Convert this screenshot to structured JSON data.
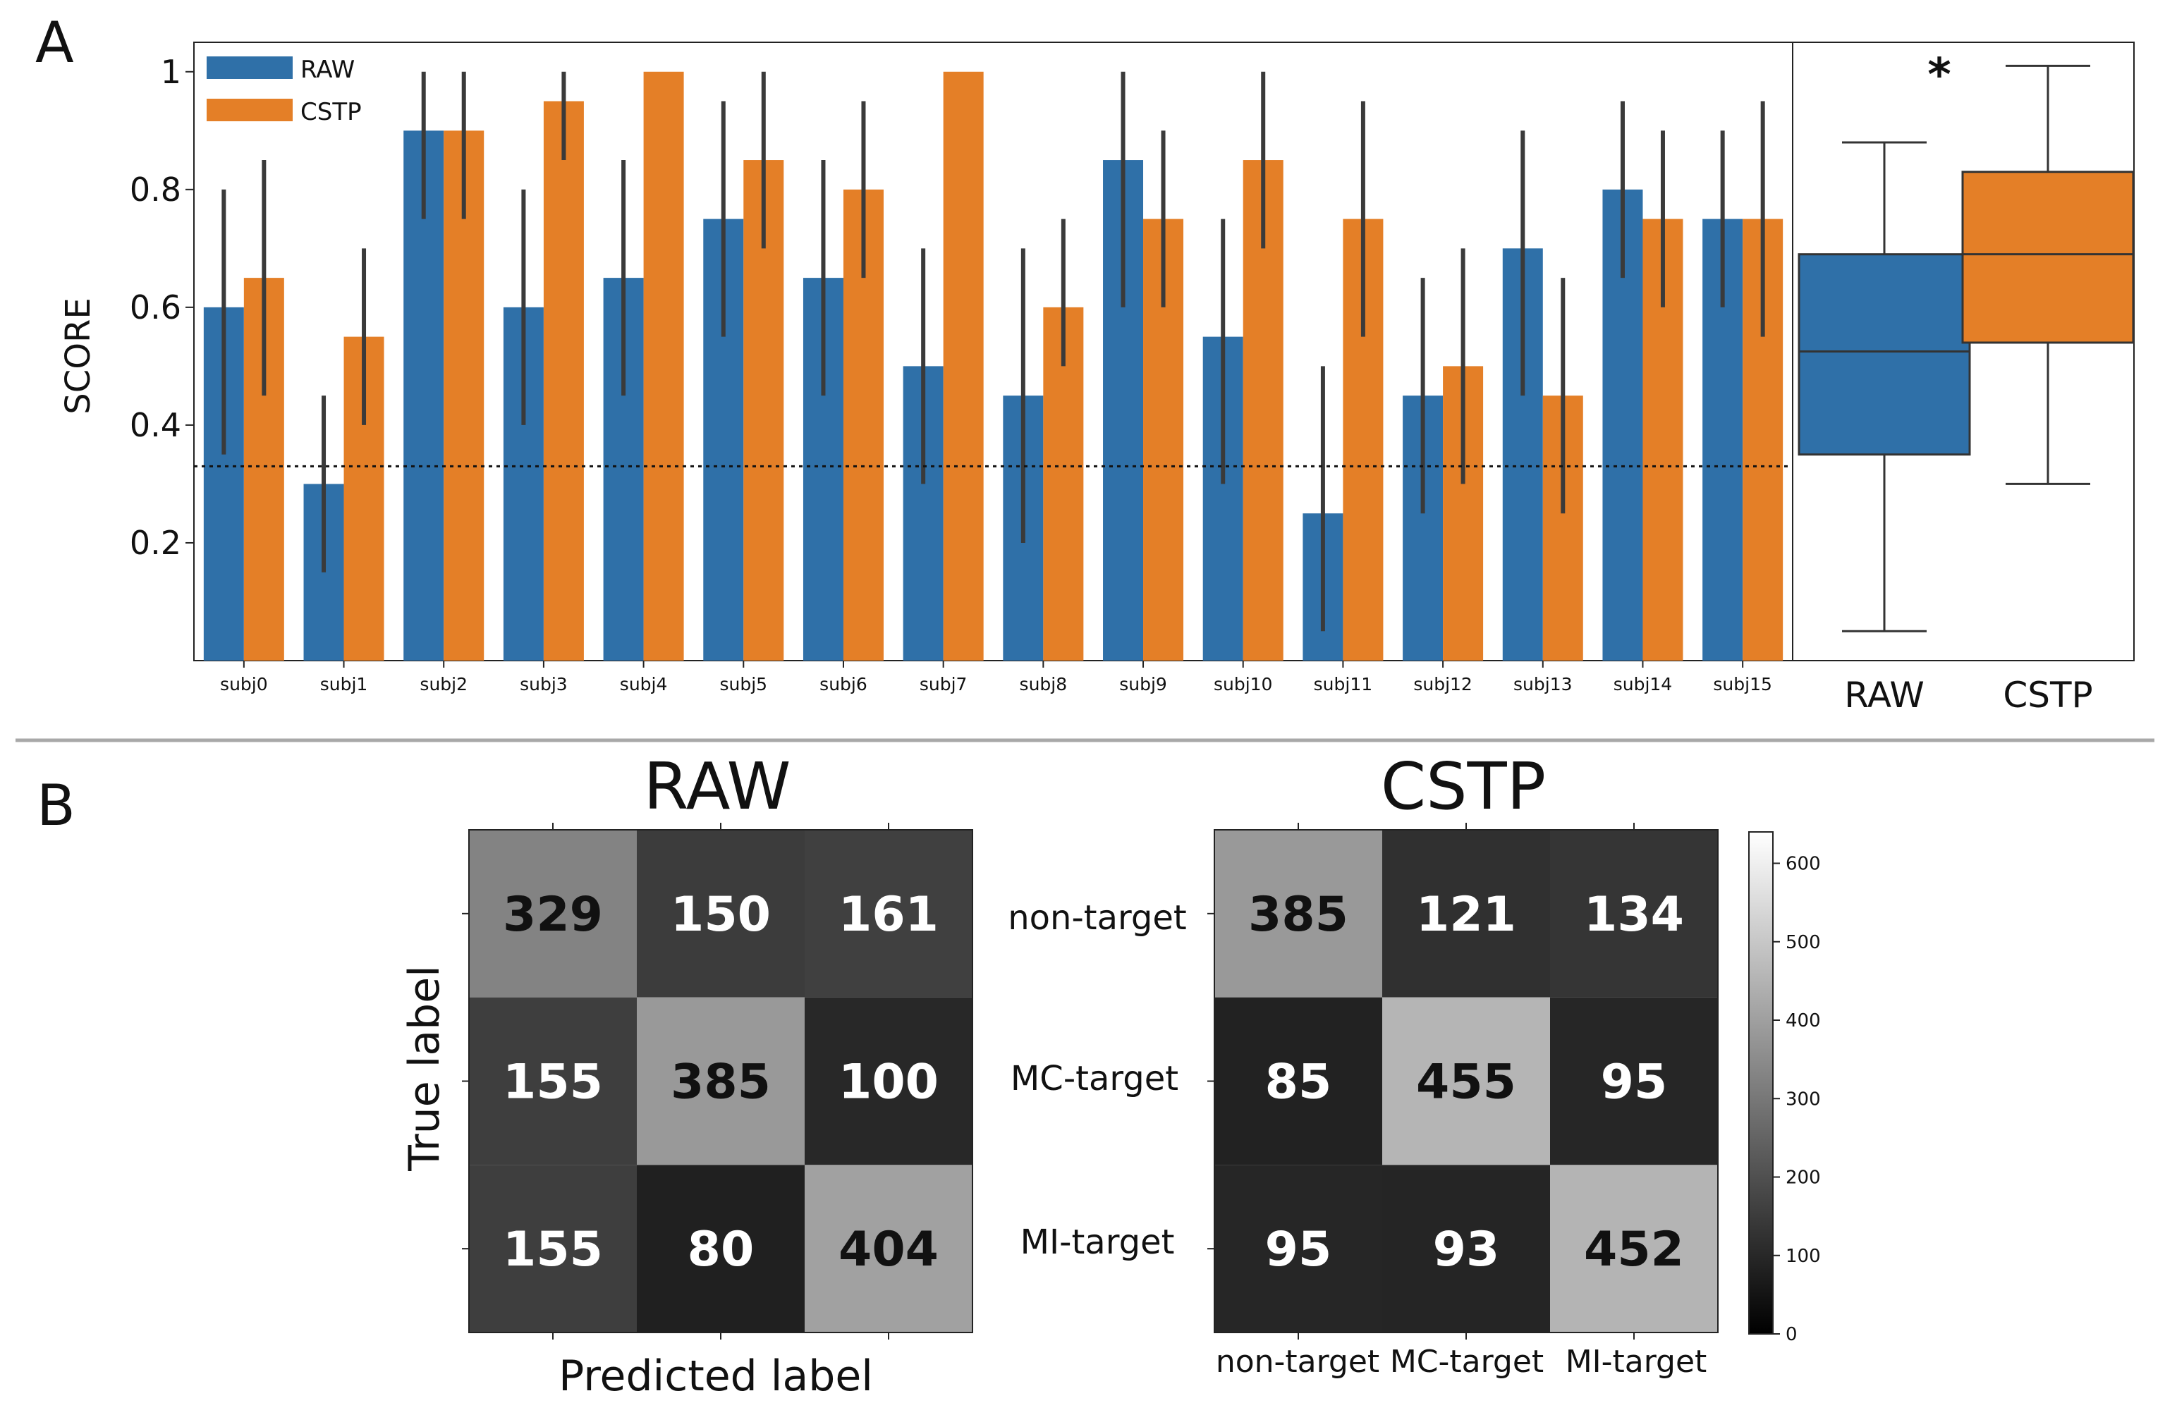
{
  "panel_labels": {
    "a": "A",
    "b": "B"
  },
  "colors": {
    "raw": "#2f70a8",
    "cstp": "#e47f27",
    "err": "#3a3a3a"
  },
  "chart_data": [
    {
      "type": "bar",
      "ylabel": "SCORE",
      "ylim": [
        0,
        1.05
      ],
      "yticks": [
        "0.2",
        "0.4",
        "0.6",
        "0.8",
        "1"
      ],
      "ytick_values": [
        0.2,
        0.4,
        0.6,
        0.8,
        1.0
      ],
      "chance_line": 0.33,
      "legend_position": "top-left",
      "categories": [
        "subj0",
        "subj1",
        "subj2",
        "subj3",
        "subj4",
        "subj5",
        "subj6",
        "subj7",
        "subj8",
        "subj9",
        "subj10",
        "subj11",
        "subj12",
        "subj13",
        "subj14",
        "subj15"
      ],
      "series": [
        {
          "name": "RAW",
          "values": [
            0.6,
            0.3,
            0.9,
            0.6,
            0.65,
            0.75,
            0.65,
            0.5,
            0.45,
            0.85,
            0.55,
            0.25,
            0.45,
            0.7,
            0.8,
            0.75
          ],
          "err_low": [
            0.35,
            0.15,
            0.75,
            0.4,
            0.45,
            0.55,
            0.45,
            0.3,
            0.2,
            0.6,
            0.3,
            0.05,
            0.25,
            0.45,
            0.65,
            0.6
          ],
          "err_high": [
            0.8,
            0.45,
            1.0,
            0.8,
            0.85,
            0.95,
            0.85,
            0.7,
            0.7,
            1.0,
            0.75,
            0.5,
            0.65,
            0.9,
            0.95,
            0.9
          ]
        },
        {
          "name": "CSTP",
          "values": [
            0.65,
            0.55,
            0.9,
            0.95,
            1.0,
            0.85,
            0.8,
            1.0,
            0.6,
            0.75,
            0.85,
            0.75,
            0.5,
            0.45,
            0.75,
            0.75
          ],
          "err_low": [
            0.45,
            0.4,
            0.75,
            0.85,
            null,
            0.7,
            0.65,
            null,
            0.5,
            0.6,
            0.7,
            0.55,
            0.3,
            0.25,
            0.6,
            0.55
          ],
          "err_high": [
            0.85,
            0.7,
            1.0,
            1.0,
            null,
            1.0,
            0.95,
            null,
            0.75,
            0.9,
            1.0,
            0.95,
            0.7,
            0.65,
            0.9,
            0.95
          ]
        }
      ]
    },
    {
      "type": "box",
      "ylim": [
        0,
        1.05
      ],
      "categories": [
        "RAW",
        "CSTP"
      ],
      "significance": "*",
      "boxes": [
        {
          "name": "RAW",
          "whisker_low": 0.05,
          "q1": 0.35,
          "median": 0.525,
          "q3": 0.69,
          "whisker_high": 0.88
        },
        {
          "name": "CSTP",
          "whisker_low": 0.3,
          "q1": 0.54,
          "median": 0.69,
          "q3": 0.83,
          "whisker_high": 1.01
        }
      ]
    },
    {
      "type": "heatmap",
      "title": "RAW",
      "xlabel": "Predicted label",
      "ylabel": "True label",
      "matrix": [
        [
          329,
          150,
          161
        ],
        [
          155,
          385,
          100
        ],
        [
          155,
          80,
          404
        ]
      ]
    },
    {
      "type": "heatmap",
      "title": "CSTP",
      "class_labels": [
        "non-target",
        "MC-target",
        "MI-target"
      ],
      "matrix": [
        [
          385,
          121,
          134
        ],
        [
          85,
          455,
          95
        ],
        [
          95,
          93,
          452
        ]
      ],
      "colorbar": {
        "min": 0,
        "max": 640,
        "ticks": [
          "0",
          "100",
          "200",
          "300",
          "400",
          "500",
          "600"
        ],
        "tick_values": [
          0,
          100,
          200,
          300,
          400,
          500,
          600
        ]
      }
    }
  ]
}
